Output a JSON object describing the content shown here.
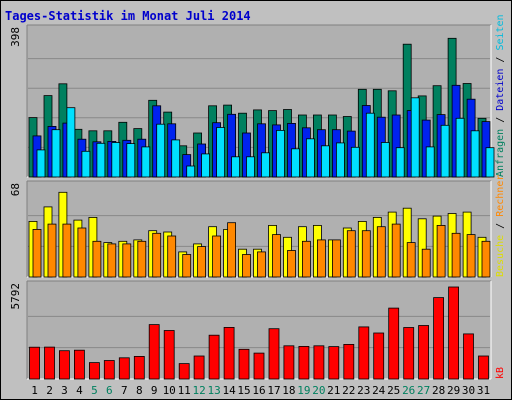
{
  "title": "Tages-Statistik im Monat Juli 2014",
  "colors": {
    "background": "#c0c0c0",
    "plot_background": "#b0b0b0",
    "grid": "#888888",
    "title": "#0000cc",
    "anfragen": "#00805f",
    "dateien": "#0022ee",
    "seiten": "#00e0ff",
    "besuche": "#ffff00",
    "rechner": "#ff8800",
    "kb": "#ff0000",
    "weekend_label": "#00805f",
    "weekday_label": "#000000"
  },
  "side_labels": {
    "top": {
      "parts": [
        {
          "text": "Anfragen",
          "color": "#00805f"
        },
        {
          "text": " / ",
          "color": "#000000"
        },
        {
          "text": "Dateien",
          "color": "#0000cc"
        },
        {
          "text": " / ",
          "color": "#000000"
        },
        {
          "text": "Seiten",
          "color": "#00bbdd"
        }
      ]
    },
    "middle": {
      "parts": [
        {
          "text": "Besuche",
          "color": "#dddd00"
        },
        {
          "text": " / ",
          "color": "#000000"
        },
        {
          "text": "Rechner",
          "color": "#ff8800"
        }
      ]
    },
    "bottom": {
      "parts": [
        {
          "text": "kB",
          "color": "#ff0000"
        }
      ]
    }
  },
  "chart_data": {
    "type": "bar",
    "title": "Tages-Statistik im Monat Juli 2014",
    "categories": [
      "1",
      "2",
      "3",
      "4",
      "5",
      "6",
      "7",
      "8",
      "9",
      "10",
      "11",
      "12",
      "13",
      "14",
      "15",
      "16",
      "17",
      "18",
      "19",
      "20",
      "21",
      "22",
      "23",
      "24",
      "25",
      "26",
      "27",
      "28",
      "29",
      "30",
      "31"
    ],
    "weekend_days": [
      "5",
      "6",
      "12",
      "13",
      "19",
      "20",
      "26",
      "27"
    ],
    "panels": [
      {
        "max_label": "398",
        "ylim": [
          0,
          398
        ],
        "series": [
          {
            "name": "Anfragen",
            "values": [
              162,
              222,
              254,
              130,
              126,
              126,
              149,
              132,
              209,
              177,
              85,
              120,
              194,
              196,
              174,
              183,
              181,
              184,
              169,
              169,
              169,
              165,
              239,
              239,
              235,
              362,
              221,
              249,
              378,
              255,
              160
            ]
          },
          {
            "name": "Dateien",
            "values": [
              112,
              138,
              147,
              103,
              96,
              97,
              100,
              103,
              194,
              145,
              61,
              90,
              148,
              171,
              120,
              145,
              142,
              146,
              134,
              129,
              129,
              125,
              195,
              163,
              169,
              181,
              155,
              170,
              250,
              212,
              151
            ]
          },
          {
            "name": "Seiten",
            "values": [
              74,
              129,
              189,
              70,
              92,
              94,
              91,
              82,
              144,
              101,
              30,
              63,
              135,
              55,
              55,
              66,
              127,
              77,
              104,
              85,
              93,
              81,
              174,
              94,
              80,
              216,
              82,
              141,
              160,
              126,
              80
            ]
          }
        ]
      },
      {
        "max_label": "68",
        "ylim": [
          0,
          68
        ],
        "series": [
          {
            "name": "Besuche",
            "values": [
              42,
              53,
              64,
              43,
              45,
              26,
              27,
              28,
              35,
              34,
              19,
              25,
              38,
              36,
              21,
              21,
              39,
              30,
              38,
              39,
              28,
              37,
              42,
              45,
              49,
              52,
              44,
              46,
              48,
              49,
              30
            ]
          },
          {
            "name": "Rechner",
            "values": [
              36,
              40,
              40,
              37,
              27,
              25,
              25,
              27,
              33,
              31,
              17,
              23,
              31,
              41,
              17,
              19,
              32,
              20,
              27,
              28,
              28,
              35,
              35,
              38,
              40,
              26,
              21,
              39,
              33,
              32,
              27
            ]
          }
        ]
      },
      {
        "max_label": "5792",
        "ylim": [
          0,
          5792
        ],
        "series": [
          {
            "name": "kB",
            "values": [
              2004,
              2011,
              1784,
              1815,
              1034,
              1163,
              1336,
              1422,
              3426,
              3054,
              971,
              1451,
              2760,
              3251,
              1872,
              1630,
              3166,
              2092,
              2053,
              2092,
              2040,
              2178,
              3278,
              2894,
              4466,
              3243,
              3368,
              5122,
              5792,
              2839,
              1449
            ]
          }
        ]
      }
    ]
  }
}
